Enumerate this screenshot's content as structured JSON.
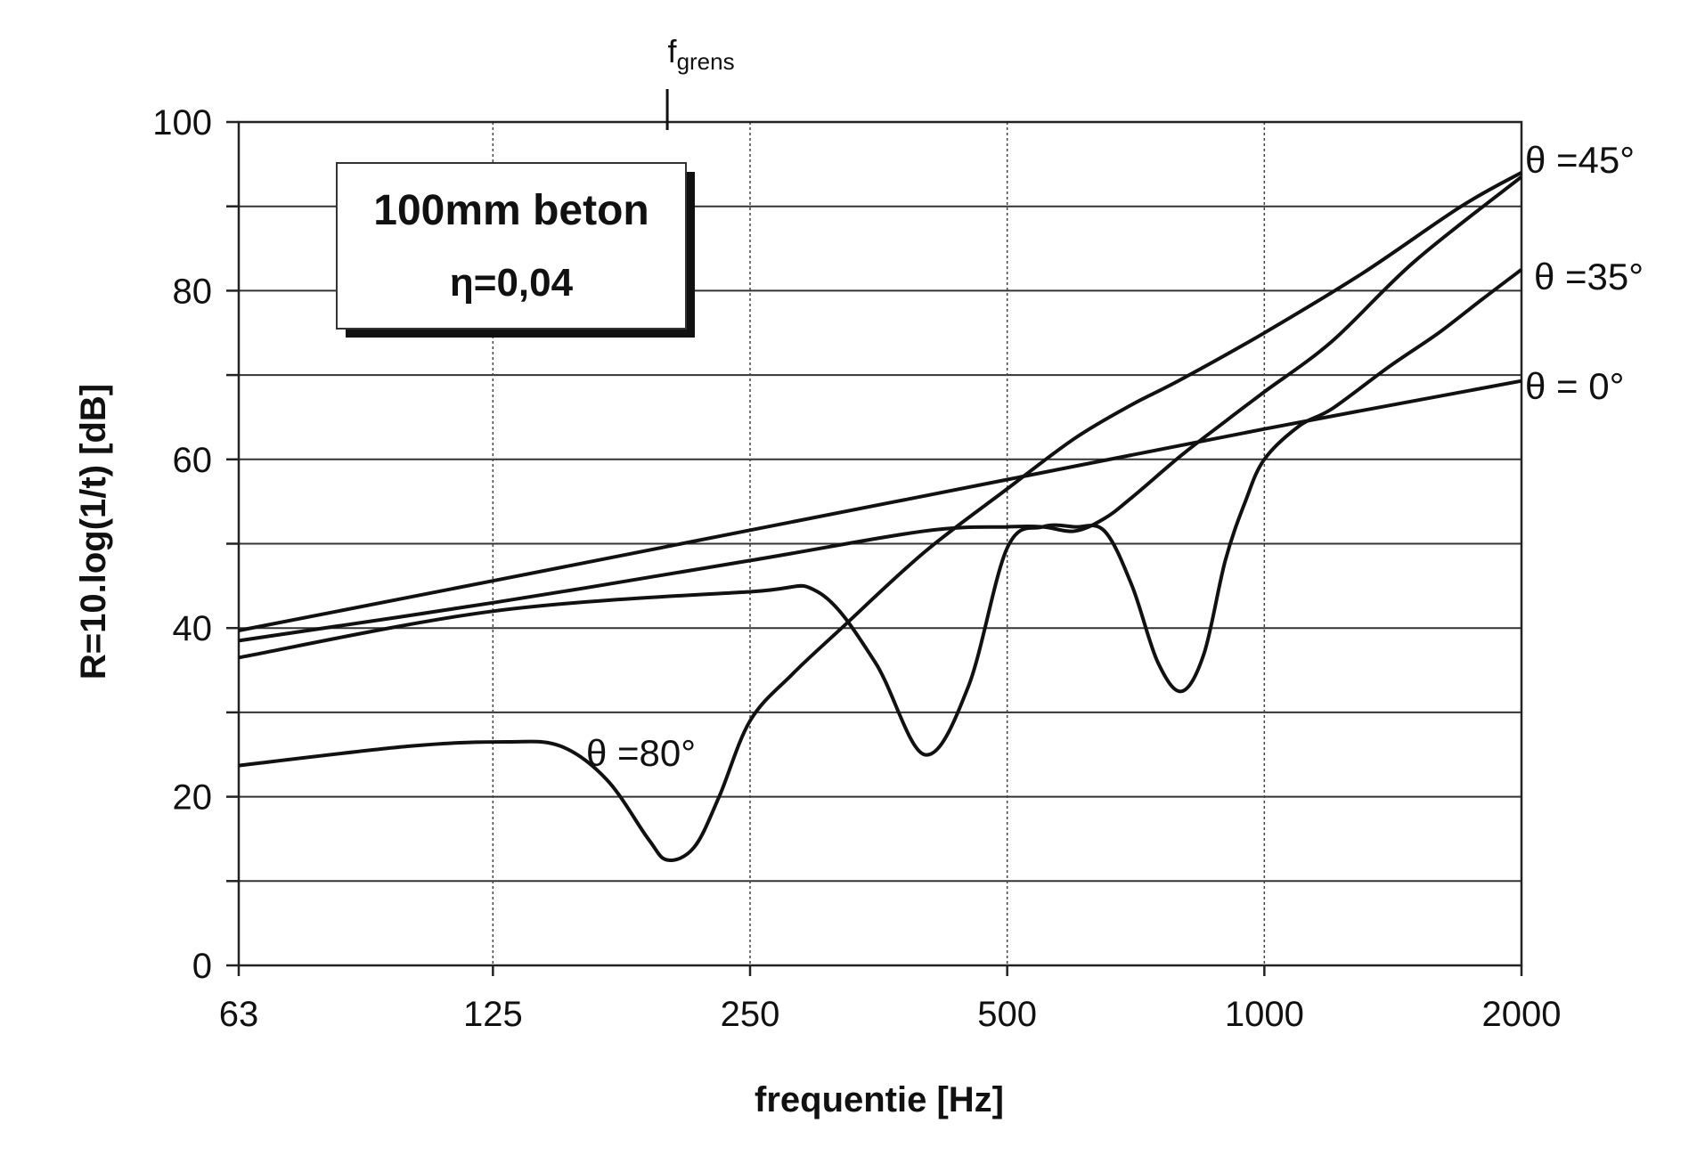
{
  "chart_data": {
    "type": "line",
    "x_scale": "log2",
    "xlabel": "frequentie  [Hz]",
    "ylabel": "R=10.log(1/t)  [dB]",
    "x_ticks": [
      63,
      125,
      250,
      500,
      1000,
      2000
    ],
    "x_tick_labels": [
      "63",
      "125",
      "250",
      "500",
      "1000",
      "2000"
    ],
    "y_ticks": [
      0,
      20,
      40,
      60,
      80,
      100
    ],
    "y_tick_labels": [
      "0",
      "20",
      "40",
      "60",
      "80",
      "100"
    ],
    "xlim": [
      63,
      2000
    ],
    "ylim": [
      0,
      100
    ],
    "grid": true,
    "annotation_box": {
      "line1": "100mm  beton",
      "line2": "η=0,04"
    },
    "fgrens": {
      "label": "f",
      "subscript": "grens",
      "x": 200
    },
    "series": [
      {
        "name": "θ = 0°",
        "x": [
          63,
          125,
          250,
          500,
          1000,
          2000
        ],
        "y": [
          39.7,
          45.6,
          51.6,
          57.6,
          63.6,
          69.3
        ]
      },
      {
        "name": "θ =35°",
        "x": [
          63,
          125,
          250,
          300,
          350,
          400,
          450,
          500,
          550,
          600,
          650,
          700,
          750,
          800,
          850,
          900,
          950,
          1000,
          1100,
          1200,
          1400,
          1600,
          1800,
          2000
        ],
        "y": [
          36.5,
          42,
          44.3,
          44.3,
          36,
          25,
          33,
          49.5,
          52,
          52,
          51.5,
          45,
          36,
          32.5,
          37,
          48,
          55,
          60,
          64,
          66,
          71,
          75,
          79,
          82.5
        ]
      },
      {
        "name": "θ =45°",
        "x": [
          63,
          125,
          250,
          400,
          500,
          550,
          600,
          650,
          700,
          800,
          900,
          1000,
          1200,
          1500,
          2000
        ],
        "y": [
          38.5,
          43,
          48,
          51.5,
          52,
          52,
          51.5,
          53,
          55.5,
          60.5,
          64.5,
          68,
          74,
          83.5,
          93.5
        ]
      },
      {
        "name": "θ =80°",
        "x": [
          63,
          100,
          130,
          150,
          170,
          190,
          200,
          215,
          230,
          250,
          280,
          320,
          400,
          500,
          600,
          700,
          800,
          1000,
          1300,
          1700,
          2000
        ],
        "y": [
          23.7,
          26,
          26.5,
          26,
          22,
          15,
          12.5,
          14,
          20,
          29,
          34.5,
          40,
          49,
          56.5,
          62.5,
          66.5,
          69.5,
          75,
          82,
          90,
          94
        ]
      }
    ]
  }
}
